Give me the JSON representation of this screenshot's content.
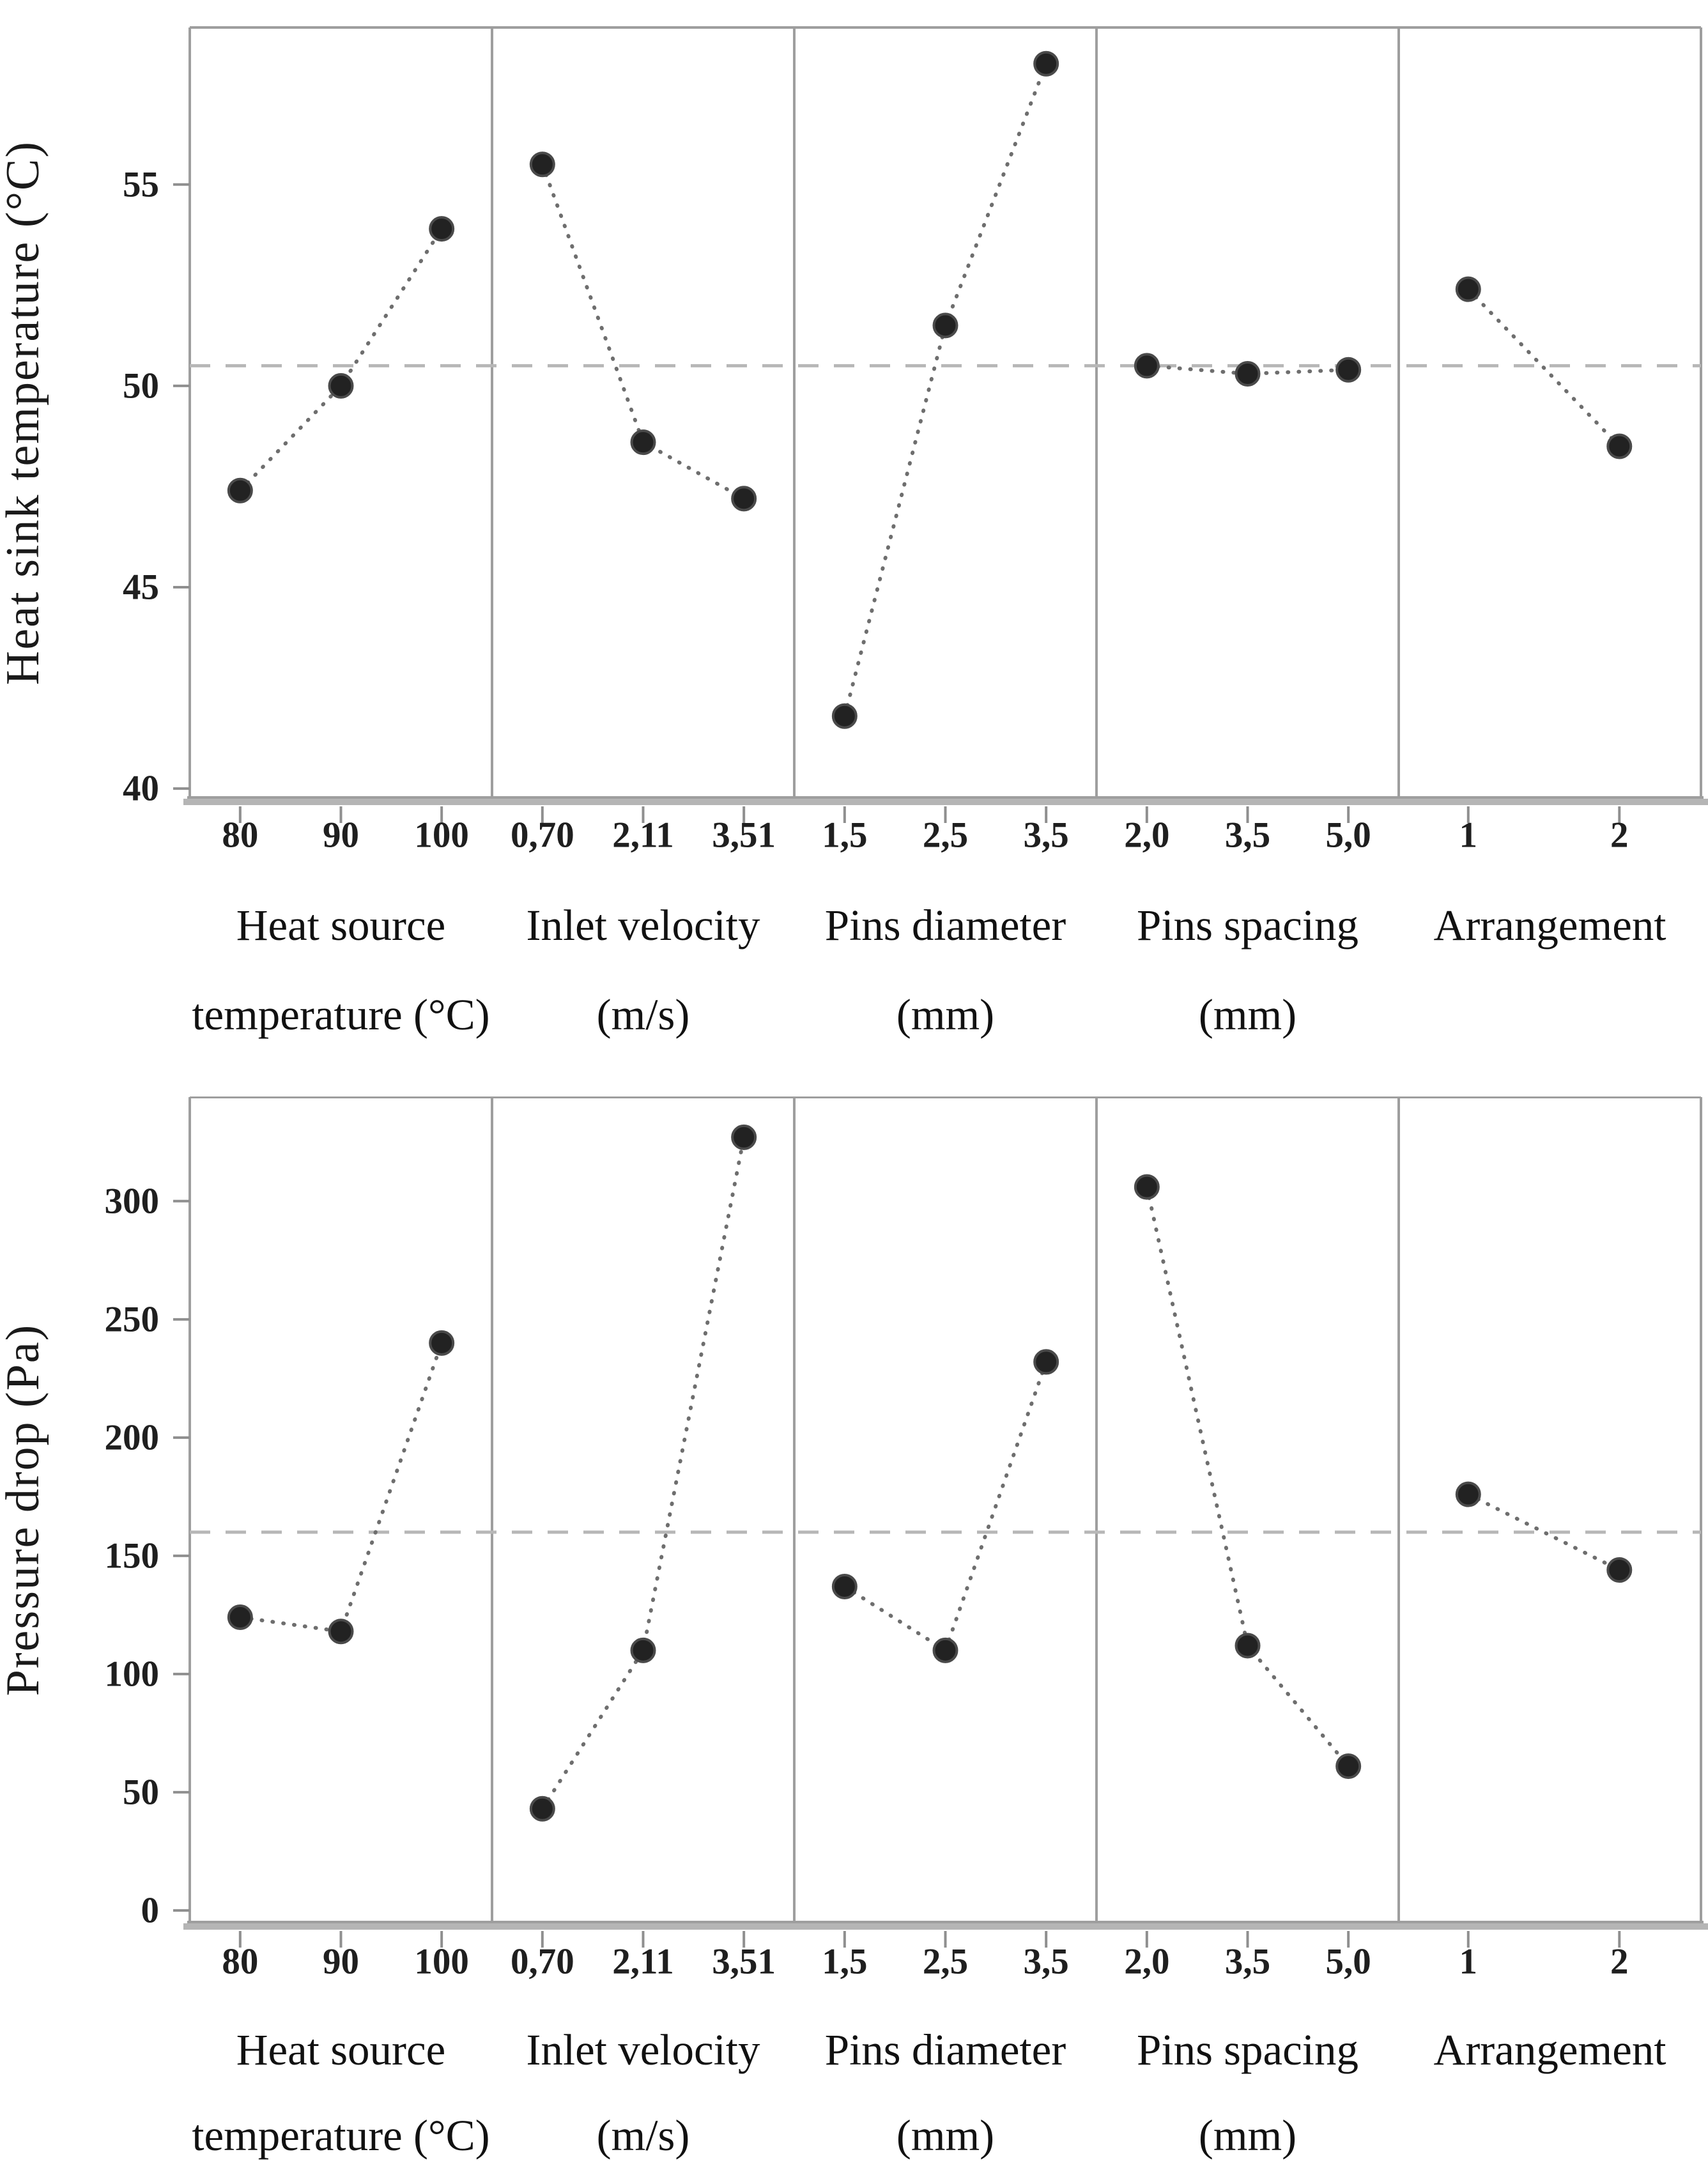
{
  "figure": {
    "kind": "main-effects-plots",
    "background": "#ffffff",
    "text_color": "#1a1a1a"
  },
  "chart_style": {
    "frame_color": "#9e9e9e",
    "axis_band_color": "#b5b5b5",
    "tick_color": "#8f8f8f",
    "series_line_color": "#6e6e6e",
    "marker_color": "#222222",
    "marker_ring_color": "#4a4a4a",
    "mean_line_color": "#b7b7b7"
  },
  "chart_data": [
    {
      "type": "line",
      "title": "",
      "ylabel": "Heat sink temperature (°C)",
      "xlabel": "",
      "ylim": [
        39.78,
        58.9
      ],
      "yticks": [
        "55",
        "50",
        "45",
        "40"
      ],
      "ytick_values": [
        55,
        50,
        45,
        40
      ],
      "mean_line": 50.5,
      "grid": "off",
      "legend": "none",
      "panels": [
        {
          "name_line1": "Heat source",
          "name_line2": "temperature (°C)",
          "categories": [
            "80",
            "90",
            "100"
          ],
          "values": [
            47.4,
            50.0,
            53.9
          ]
        },
        {
          "name_line1": "Inlet velocity",
          "name_line2": "(m/s)",
          "categories": [
            "0,70",
            "2,11",
            "3,51"
          ],
          "values": [
            55.5,
            48.6,
            47.2
          ]
        },
        {
          "name_line1": "Pins diameter",
          "name_line2": "(mm)",
          "categories": [
            "1,5",
            "2,5",
            "3,5"
          ],
          "values": [
            41.8,
            51.5,
            58.0
          ]
        },
        {
          "name_line1": "Pins spacing",
          "name_line2": "(mm)",
          "categories": [
            "2,0",
            "3,5",
            "5,0"
          ],
          "values": [
            50.5,
            50.3,
            50.4
          ]
        },
        {
          "name_line1": "Arrangement",
          "name_line2": "",
          "categories": [
            "1",
            "2"
          ],
          "values": [
            52.4,
            48.5
          ]
        }
      ]
    },
    {
      "type": "line",
      "title": "",
      "ylabel": "Pressure drop (Pa)",
      "xlabel": "",
      "ylim": [
        -4.9,
        344
      ],
      "yticks": [
        "300",
        "250",
        "200",
        "150",
        "100",
        "50",
        "0"
      ],
      "ytick_values": [
        300,
        250,
        200,
        150,
        100,
        50,
        0
      ],
      "mean_line": 160,
      "grid": "off",
      "legend": "none",
      "panels": [
        {
          "name_line1": "Heat source",
          "name_line2": "temperature (°C)",
          "categories": [
            "80",
            "90",
            "100"
          ],
          "values": [
            124,
            118,
            240
          ]
        },
        {
          "name_line1": "Inlet velocity",
          "name_line2": "(m/s)",
          "categories": [
            "0,70",
            "2,11",
            "3,51"
          ],
          "values": [
            43,
            110,
            327
          ]
        },
        {
          "name_line1": "Pins diameter",
          "name_line2": "(mm)",
          "categories": [
            "1,5",
            "2,5",
            "3,5"
          ],
          "values": [
            137,
            110,
            232
          ]
        },
        {
          "name_line1": "Pins spacing",
          "name_line2": "(mm)",
          "categories": [
            "2,0",
            "3,5",
            "5,0"
          ],
          "values": [
            306,
            112,
            61
          ]
        },
        {
          "name_line1": "Arrangement",
          "name_line2": "",
          "categories": [
            "1",
            "2"
          ],
          "values": [
            176,
            144
          ]
        }
      ]
    }
  ]
}
